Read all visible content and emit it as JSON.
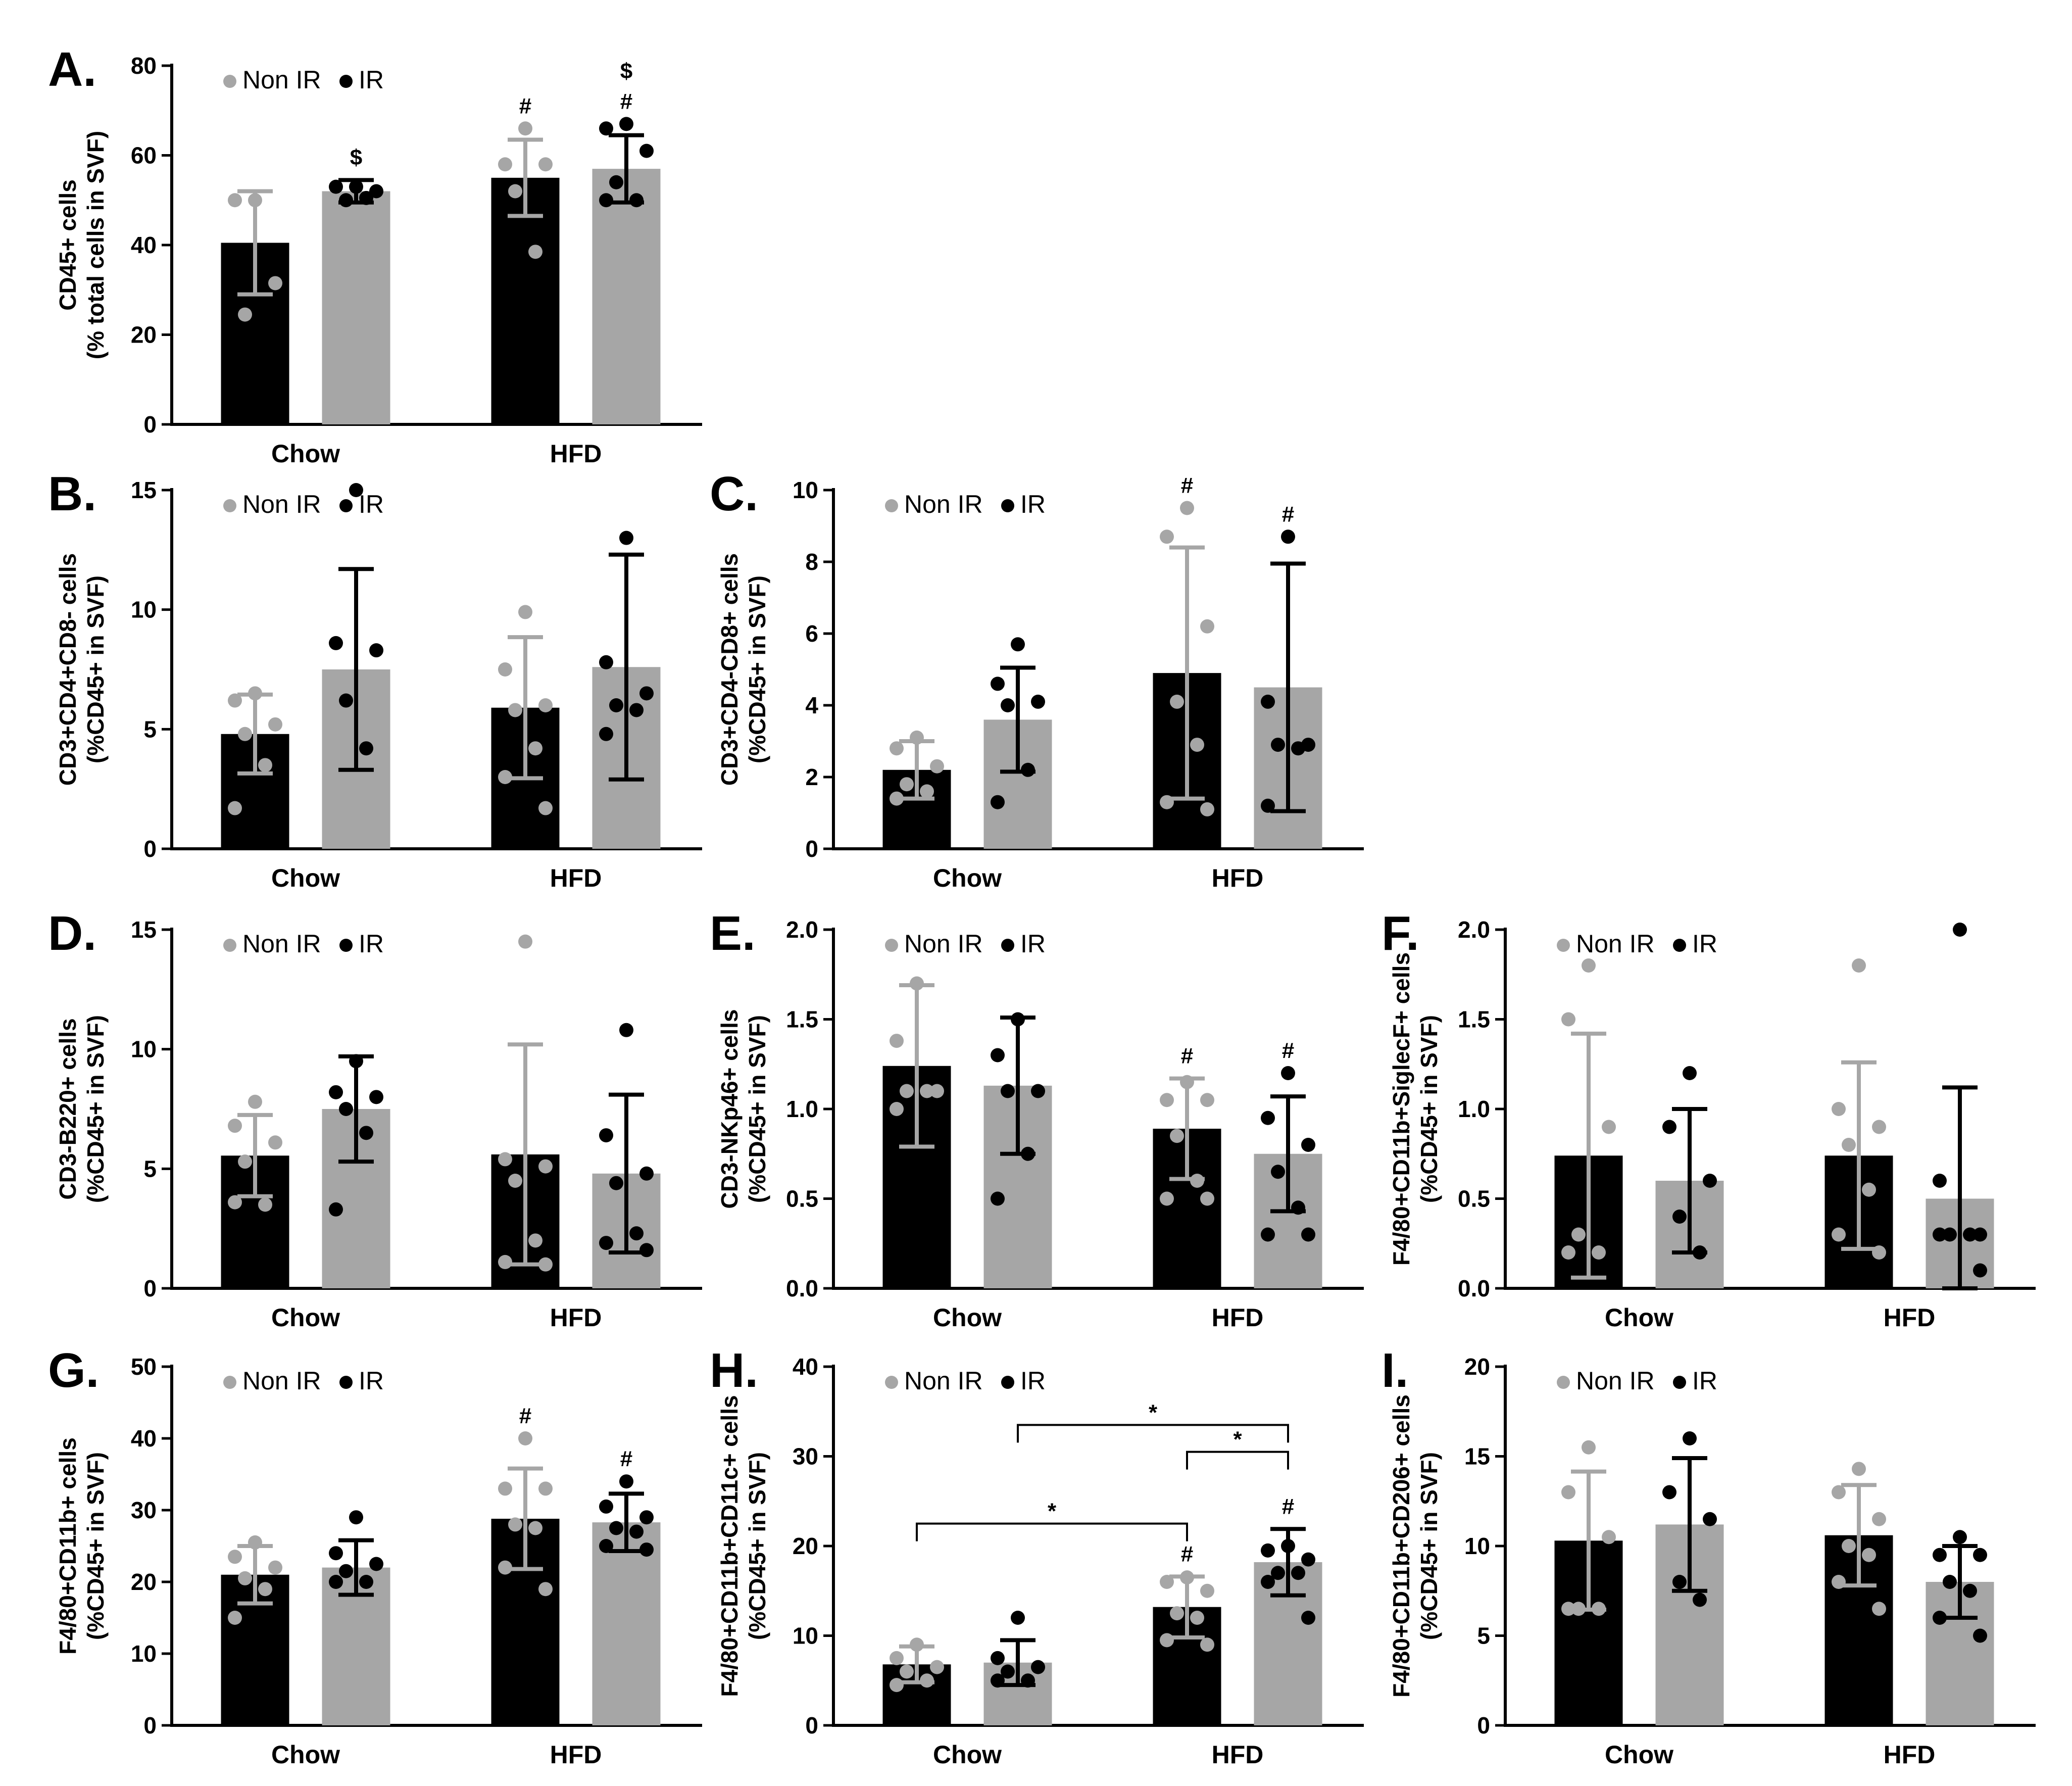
{
  "colors": {
    "non_ir": "#a6a6a6",
    "ir": "#000000",
    "axis": "#000000"
  },
  "chart_data": [
    {
      "panel": "A.",
      "type": "bar",
      "ylabel": [
        "CD45+ cells",
        "(% total cells in SVF)"
      ],
      "ylim": [
        0,
        80
      ],
      "yticks": [
        "0",
        "20",
        "40",
        "60",
        "80"
      ],
      "yticks_values": [
        0,
        20,
        40,
        60,
        80
      ],
      "categories": [
        "Chow",
        "HFD"
      ],
      "legend": [
        "Non IR",
        "IR"
      ],
      "bars": [
        {
          "value": 40.5,
          "err": 11.5,
          "fill": "black",
          "err_color": "gray",
          "dots_color": "gray",
          "dots": [
            50,
            50,
            31.5,
            24.5
          ],
          "marks": []
        },
        {
          "value": 52,
          "err": 2.5,
          "fill": "gray",
          "err_color": "black",
          "dots_color": "black",
          "dots": [
            53,
            53,
            52,
            50,
            50.5
          ],
          "marks": [
            "$"
          ]
        },
        {
          "value": 55,
          "err": 8.5,
          "fill": "black",
          "err_color": "gray",
          "dots_color": "gray",
          "dots": [
            66,
            58,
            58,
            52,
            38.5
          ],
          "marks": [
            "#"
          ]
        },
        {
          "value": 57,
          "err": 7.5,
          "fill": "gray",
          "err_color": "black",
          "dots_color": "black",
          "dots": [
            67,
            66,
            61,
            54,
            50,
            50
          ],
          "marks": [
            "#",
            "$"
          ]
        }
      ],
      "brackets": []
    },
    {
      "panel": "B.",
      "type": "bar",
      "ylabel": [
        "CD3+CD4+CD8- cells",
        "(%CD45+ in SVF)"
      ],
      "ylim": [
        0,
        15
      ],
      "yticks": [
        "0",
        "5",
        "10",
        "15"
      ],
      "yticks_values": [
        0,
        5,
        10,
        15
      ],
      "categories": [
        "Chow",
        "HFD"
      ],
      "legend": [
        "Non IR",
        "IR"
      ],
      "bars": [
        {
          "value": 4.8,
          "err": 1.65,
          "fill": "black",
          "err_color": "gray",
          "dots_color": "gray",
          "dots": [
            6.5,
            6.2,
            5.2,
            4.8,
            3.5,
            1.7
          ],
          "marks": []
        },
        {
          "value": 7.5,
          "err": 4.2,
          "fill": "gray",
          "err_color": "black",
          "dots_color": "black",
          "dots": [
            15,
            8.6,
            8.3,
            6.2,
            4.2
          ],
          "marks": []
        },
        {
          "value": 5.9,
          "err": 2.95,
          "fill": "black",
          "err_color": "gray",
          "dots_color": "gray",
          "dots": [
            9.9,
            7.5,
            6,
            5.8,
            4.2,
            3,
            1.7
          ],
          "marks": []
        },
        {
          "value": 7.6,
          "err": 4.7,
          "fill": "gray",
          "err_color": "black",
          "dots_color": "black",
          "dots": [
            13,
            7.8,
            6.5,
            6,
            5.8,
            4.8
          ],
          "marks": []
        }
      ],
      "brackets": []
    },
    {
      "panel": "C.",
      "type": "bar",
      "ylabel": [
        "CD3+CD4-CD8+ cells",
        "(%CD45+ in SVF)"
      ],
      "ylim": [
        0,
        10
      ],
      "yticks": [
        "0",
        "2",
        "4",
        "6",
        "8",
        "10"
      ],
      "yticks_values": [
        0,
        2,
        4,
        6,
        8,
        10
      ],
      "categories": [
        "Chow",
        "HFD"
      ],
      "legend": [
        "Non IR",
        "IR"
      ],
      "bars": [
        {
          "value": 2.2,
          "err": 0.8,
          "fill": "black",
          "err_color": "gray",
          "dots_color": "gray",
          "dots": [
            3.1,
            2.8,
            2.3,
            1.8,
            1.6,
            1.4
          ],
          "marks": []
        },
        {
          "value": 3.6,
          "err": 1.45,
          "fill": "gray",
          "err_color": "black",
          "dots_color": "black",
          "dots": [
            5.7,
            4.6,
            4.1,
            4,
            2.2,
            1.3
          ],
          "marks": []
        },
        {
          "value": 4.9,
          "err": 3.5,
          "fill": "black",
          "err_color": "gray",
          "dots_color": "gray",
          "dots": [
            9.5,
            8.7,
            6.2,
            4.1,
            2.9,
            1.3,
            1.1
          ],
          "marks": [
            "#"
          ]
        },
        {
          "value": 4.5,
          "err": 3.45,
          "fill": "gray",
          "err_color": "black",
          "dots_color": "black",
          "dots": [
            8.7,
            4.1,
            2.9,
            2.9,
            2.8,
            1.2
          ],
          "marks": [
            "#"
          ]
        }
      ],
      "brackets": []
    },
    {
      "panel": "D.",
      "type": "bar",
      "ylabel": [
        "CD3-B220+ cells",
        "(%CD45+ in SVF)"
      ],
      "ylim": [
        0,
        15
      ],
      "yticks": [
        "0",
        "5",
        "10",
        "15"
      ],
      "yticks_values": [
        0,
        5,
        10,
        15
      ],
      "categories": [
        "Chow",
        "HFD"
      ],
      "legend": [
        "Non IR",
        "IR"
      ],
      "bars": [
        {
          "value": 5.55,
          "err": 1.7,
          "fill": "black",
          "err_color": "gray",
          "dots_color": "gray",
          "dots": [
            7.8,
            6.8,
            6.1,
            5.3,
            3.5,
            3.6
          ],
          "marks": []
        },
        {
          "value": 7.5,
          "err": 2.2,
          "fill": "gray",
          "err_color": "black",
          "dots_color": "black",
          "dots": [
            9.5,
            8.2,
            8,
            7.5,
            6.5,
            3.3
          ],
          "marks": []
        },
        {
          "value": 5.6,
          "err": 4.6,
          "fill": "black",
          "err_color": "gray",
          "dots_color": "gray",
          "dots": [
            14.5,
            5.4,
            5.1,
            4.5,
            2,
            1.1,
            1
          ],
          "marks": []
        },
        {
          "value": 4.8,
          "err": 3.3,
          "fill": "gray",
          "err_color": "black",
          "dots_color": "black",
          "dots": [
            10.8,
            6.4,
            4.8,
            4.4,
            2.3,
            1.9,
            1.6
          ],
          "marks": []
        }
      ],
      "brackets": []
    },
    {
      "panel": "E.",
      "type": "bar",
      "ylabel": [
        "CD3-NKp46+ cells",
        "(%CD45+ in SVF)"
      ],
      "ylim": [
        0,
        2.0
      ],
      "yticks": [
        "0.0",
        "0.5",
        "1.0",
        "1.5",
        "2.0"
      ],
      "yticks_values": [
        0,
        0.5,
        1.0,
        1.5,
        2.0
      ],
      "categories": [
        "Chow",
        "HFD"
      ],
      "legend": [
        "Non IR",
        "IR"
      ],
      "bars": [
        {
          "value": 1.24,
          "err": 0.45,
          "fill": "black",
          "err_color": "gray",
          "dots_color": "gray",
          "dots": [
            1.7,
            1.38,
            1.1,
            1.1,
            1.1,
            1.0
          ],
          "marks": []
        },
        {
          "value": 1.13,
          "err": 0.38,
          "fill": "gray",
          "err_color": "black",
          "dots_color": "black",
          "dots": [
            1.5,
            1.3,
            1.1,
            1.1,
            0.75,
            0.5
          ],
          "marks": []
        },
        {
          "value": 0.89,
          "err": 0.28,
          "fill": "black",
          "err_color": "gray",
          "dots_color": "gray",
          "dots": [
            1.15,
            1.05,
            1.05,
            0.85,
            0.6,
            0.5,
            0.5
          ],
          "marks": [
            "#"
          ]
        },
        {
          "value": 0.75,
          "err": 0.32,
          "fill": "gray",
          "err_color": "black",
          "dots_color": "black",
          "dots": [
            1.2,
            0.95,
            0.8,
            0.65,
            0.45,
            0.3,
            0.3
          ],
          "marks": [
            "#"
          ]
        }
      ],
      "brackets": []
    },
    {
      "panel": "F.",
      "type": "bar",
      "ylabel": [
        "F4/80+CD11b+SiglecF+ cells",
        "(%CD45+ in SVF)"
      ],
      "ylim": [
        0,
        2.0
      ],
      "yticks": [
        "0.0",
        "0.5",
        "1.0",
        "1.5",
        "2.0"
      ],
      "yticks_values": [
        0,
        0.5,
        1.0,
        1.5,
        2.0
      ],
      "categories": [
        "Chow",
        "HFD"
      ],
      "legend": [
        "Non IR",
        "IR"
      ],
      "bars": [
        {
          "value": 0.74,
          "err": 0.68,
          "fill": "black",
          "err_color": "gray",
          "dots_color": "gray",
          "dots": [
            1.8,
            1.5,
            0.9,
            0.3,
            0.2,
            0.2
          ],
          "marks": []
        },
        {
          "value": 0.6,
          "err": 0.4,
          "fill": "gray",
          "err_color": "black",
          "dots_color": "black",
          "dots": [
            1.2,
            0.9,
            0.6,
            0.4,
            0.2
          ],
          "marks": []
        },
        {
          "value": 0.74,
          "err": 0.52,
          "fill": "black",
          "err_color": "gray",
          "dots_color": "gray",
          "dots": [
            1.8,
            1.0,
            0.9,
            0.8,
            0.55,
            0.3,
            0.2
          ],
          "marks": []
        },
        {
          "value": 0.5,
          "err": 0.62,
          "fill": "gray",
          "err_color": "black",
          "dots_color": "black",
          "dots": [
            2.0,
            0.6,
            0.3,
            0.3,
            0.3,
            0.3,
            0.1
          ],
          "marks": []
        }
      ],
      "brackets": []
    },
    {
      "panel": "G.",
      "type": "bar",
      "ylabel": [
        "F4/80+CD11b+ cells",
        "(%CD45+ in SVF)"
      ],
      "ylim": [
        0,
        50
      ],
      "yticks": [
        "0",
        "10",
        "20",
        "30",
        "40",
        "50"
      ],
      "yticks_values": [
        0,
        10,
        20,
        30,
        40,
        50
      ],
      "categories": [
        "Chow",
        "HFD"
      ],
      "legend": [
        "Non IR",
        "IR"
      ],
      "bars": [
        {
          "value": 21,
          "err": 4,
          "fill": "black",
          "err_color": "gray",
          "dots_color": "gray",
          "dots": [
            25.5,
            23.5,
            22,
            20.5,
            19,
            15
          ],
          "marks": []
        },
        {
          "value": 22,
          "err": 3.8,
          "fill": "gray",
          "err_color": "black",
          "dots_color": "black",
          "dots": [
            29,
            24,
            22.5,
            21.5,
            20,
            20
          ],
          "marks": []
        },
        {
          "value": 28.8,
          "err": 7,
          "fill": "black",
          "err_color": "gray",
          "dots_color": "gray",
          "dots": [
            40,
            33,
            33,
            28,
            27.5,
            22,
            19
          ],
          "marks": [
            "#"
          ]
        },
        {
          "value": 28.3,
          "err": 4,
          "fill": "gray",
          "err_color": "black",
          "dots_color": "black",
          "dots": [
            34,
            30.5,
            29,
            27.5,
            27,
            25,
            24.5
          ],
          "marks": [
            "#"
          ]
        }
      ],
      "brackets": []
    },
    {
      "panel": "H.",
      "type": "bar",
      "ylabel": [
        "F4/80+CD11b+CD11c+ cells",
        "(%CD45+ in SVF)"
      ],
      "ylim": [
        0,
        40
      ],
      "yticks": [
        "0",
        "10",
        "20",
        "30",
        "40"
      ],
      "yticks_values": [
        0,
        10,
        20,
        30,
        40
      ],
      "categories": [
        "Chow",
        "HFD"
      ],
      "legend": [
        "Non IR",
        "IR"
      ],
      "bars": [
        {
          "value": 6.8,
          "err": 2,
          "fill": "black",
          "err_color": "gray",
          "dots_color": "gray",
          "dots": [
            9,
            7.5,
            6.5,
            6,
            5,
            4.5
          ],
          "marks": []
        },
        {
          "value": 7,
          "err": 2.5,
          "fill": "gray",
          "err_color": "black",
          "dots_color": "black",
          "dots": [
            12,
            7.5,
            6.5,
            6,
            5,
            5
          ],
          "marks": []
        },
        {
          "value": 13.2,
          "err": 3.4,
          "fill": "black",
          "err_color": "gray",
          "dots_color": "gray",
          "dots": [
            16.5,
            16,
            15,
            12.5,
            12,
            9.5,
            9
          ],
          "marks": [
            "#"
          ]
        },
        {
          "value": 18.2,
          "err": 3.7,
          "fill": "gray",
          "err_color": "black",
          "dots_color": "black",
          "dots": [
            20,
            19.5,
            18.5,
            17,
            17,
            16,
            12
          ],
          "marks": [
            "#"
          ]
        }
      ],
      "brackets": [
        {
          "from": 2,
          "to": 3,
          "y": 30.5,
          "label": "*"
        },
        {
          "from": 1,
          "to": 3,
          "y": 33.5,
          "label": "*"
        },
        {
          "from": 0,
          "to": 2,
          "y": 22.5,
          "label": "*"
        }
      ]
    },
    {
      "panel": "I.",
      "type": "bar",
      "ylabel": [
        "F4/80+CD11b+CD206+ cells",
        "(%CD45+ in SVF)"
      ],
      "ylim": [
        0,
        20
      ],
      "yticks": [
        "0",
        "5",
        "10",
        "15",
        "20"
      ],
      "yticks_values": [
        0,
        5,
        10,
        15,
        20
      ],
      "categories": [
        "Chow",
        "HFD"
      ],
      "legend": [
        "Non IR",
        "IR"
      ],
      "bars": [
        {
          "value": 10.3,
          "err": 3.85,
          "fill": "black",
          "err_color": "gray",
          "dots_color": "gray",
          "dots": [
            15.5,
            13,
            10.5,
            6.5,
            6.5,
            6.5
          ],
          "marks": []
        },
        {
          "value": 11.2,
          "err": 3.7,
          "fill": "gray",
          "err_color": "black",
          "dots_color": "black",
          "dots": [
            16,
            13,
            11.5,
            8,
            7
          ],
          "marks": []
        },
        {
          "value": 10.6,
          "err": 2.8,
          "fill": "black",
          "err_color": "gray",
          "dots_color": "gray",
          "dots": [
            14.3,
            13,
            11.5,
            10,
            9.5,
            8,
            6.5
          ],
          "marks": []
        },
        {
          "value": 8,
          "err": 2,
          "fill": "gray",
          "err_color": "black",
          "dots_color": "black",
          "dots": [
            10.5,
            9.5,
            9.5,
            8,
            7.5,
            6,
            5
          ],
          "marks": []
        }
      ],
      "brackets": []
    }
  ]
}
